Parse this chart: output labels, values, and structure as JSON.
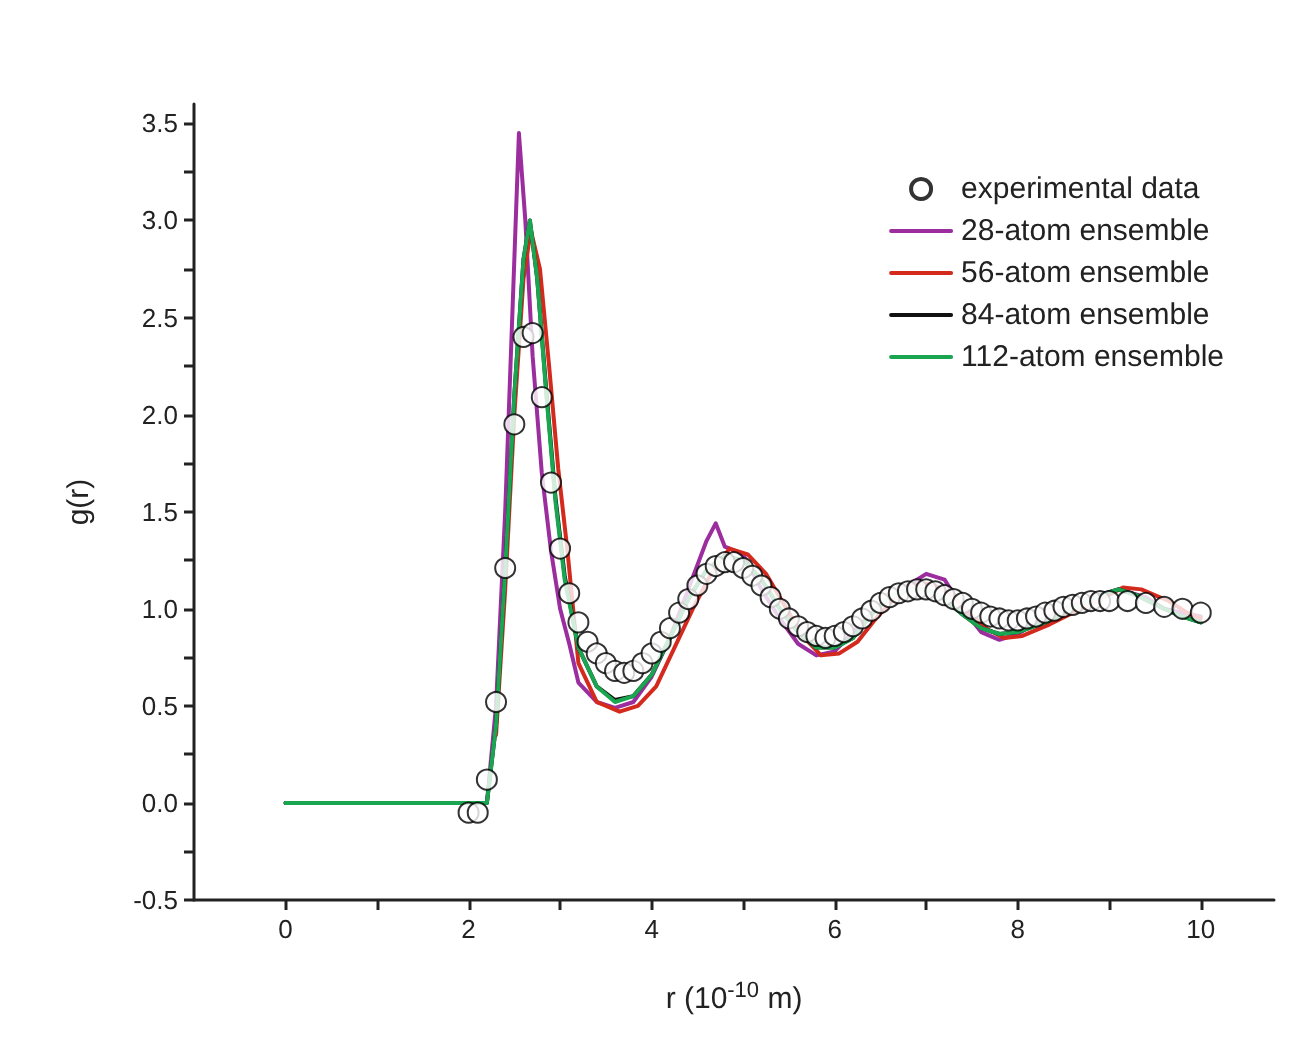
{
  "chart_data": {
    "type": "line",
    "xlabel": "r (10$^{-10}$ m)",
    "ylabel": "g(r)",
    "xlim": [
      -1,
      10.8
    ],
    "ylim": [
      -0.5,
      3.6
    ],
    "xticks": [
      0,
      {
        "value": 1,
        "label": null
      },
      2,
      {
        "value": 3,
        "label": null
      },
      4,
      {
        "value": 5,
        "label": null
      },
      6,
      {
        "value": 7,
        "label": null
      },
      8,
      {
        "value": 9,
        "label": null
      },
      10
    ],
    "yticks": [
      {
        "value": -0.5,
        "label": "-0.5"
      },
      {
        "value": -0.25,
        "label": null
      },
      {
        "value": 0,
        "label": "0.0"
      },
      {
        "value": 0.25,
        "label": null
      },
      {
        "value": 0.5,
        "label": "0.5"
      },
      {
        "value": 0.75,
        "label": null
      },
      {
        "value": 1,
        "label": "1.0"
      },
      {
        "value": 1.25,
        "label": null
      },
      {
        "value": 1.5,
        "label": "1.5"
      },
      {
        "value": 1.75,
        "label": null
      },
      {
        "value": 2,
        "label": "2.0"
      },
      {
        "value": 2.25,
        "label": null
      },
      {
        "value": 2.5,
        "label": "2.5"
      },
      {
        "value": 2.75,
        "label": null
      },
      {
        "value": 3,
        "label": "3.0"
      },
      {
        "value": 3.25,
        "label": null
      },
      {
        "value": 3.5,
        "label": "3.5"
      }
    ],
    "grid": false,
    "legend": "top right",
    "line_style": "solid",
    "series": [
      {
        "name": "experimental data",
        "type": "scatter",
        "marker": "circle",
        "color": "#000000",
        "x": [
          2.0,
          2.1,
          2.2,
          2.3,
          2.4,
          2.5,
          2.6,
          2.7,
          2.8,
          2.9,
          3.0,
          3.1,
          3.2,
          3.3,
          3.4,
          3.5,
          3.6,
          3.7,
          3.8,
          3.9,
          4.0,
          4.1,
          4.2,
          4.3,
          4.4,
          4.5,
          4.6,
          4.7,
          4.8,
          4.9,
          5.0,
          5.1,
          5.2,
          5.3,
          5.4,
          5.5,
          5.6,
          5.7,
          5.8,
          5.9,
          6.0,
          6.1,
          6.2,
          6.3,
          6.4,
          6.5,
          6.6,
          6.7,
          6.8,
          6.9,
          7.0,
          7.1,
          7.2,
          7.3,
          7.4,
          7.5,
          7.6,
          7.7,
          7.8,
          7.9,
          8.0,
          8.1,
          8.2,
          8.3,
          8.4,
          8.5,
          8.6,
          8.7,
          8.8,
          8.9,
          9.0,
          9.2,
          9.4,
          9.6,
          9.8,
          10.0
        ],
        "values": [
          -0.05,
          -0.05,
          0.12,
          0.52,
          1.21,
          1.95,
          2.4,
          2.42,
          2.09,
          1.65,
          1.31,
          1.08,
          0.93,
          0.83,
          0.77,
          0.72,
          0.68,
          0.67,
          0.68,
          0.72,
          0.77,
          0.83,
          0.9,
          0.98,
          1.05,
          1.12,
          1.18,
          1.22,
          1.24,
          1.24,
          1.21,
          1.17,
          1.12,
          1.06,
          1.0,
          0.95,
          0.91,
          0.88,
          0.86,
          0.85,
          0.86,
          0.88,
          0.91,
          0.95,
          0.99,
          1.03,
          1.06,
          1.08,
          1.09,
          1.1,
          1.1,
          1.09,
          1.07,
          1.05,
          1.03,
          1.0,
          0.98,
          0.96,
          0.95,
          0.94,
          0.94,
          0.95,
          0.96,
          0.98,
          0.99,
          1.01,
          1.02,
          1.03,
          1.04,
          1.04,
          1.04,
          1.04,
          1.03,
          1.01,
          1.0,
          0.98
        ]
      },
      {
        "name": "28-atom ensemble",
        "marker": "none",
        "color": "#9b2d9e",
        "x": [
          0,
          2.2,
          2.3,
          2.4,
          2.5,
          2.55,
          2.62,
          2.7,
          2.8,
          2.9,
          3.0,
          3.1,
          3.2,
          3.4,
          3.6,
          3.8,
          4.0,
          4.2,
          4.4,
          4.6,
          4.7,
          4.8,
          5.0,
          5.2,
          5.4,
          5.6,
          5.8,
          6.0,
          6.2,
          6.5,
          6.8,
          7.0,
          7.2,
          7.4,
          7.6,
          7.8,
          8.0,
          8.2,
          8.5,
          8.8,
          9.1,
          9.4,
          9.6,
          9.8,
          10.0
        ],
        "values": [
          0,
          0,
          0.5,
          1.5,
          2.8,
          3.45,
          3.0,
          2.3,
          1.7,
          1.3,
          1.0,
          0.82,
          0.62,
          0.52,
          0.49,
          0.52,
          0.65,
          0.85,
          1.1,
          1.35,
          1.44,
          1.32,
          1.28,
          1.1,
          0.95,
          0.82,
          0.76,
          0.78,
          0.88,
          1.02,
          1.12,
          1.18,
          1.15,
          1.0,
          0.88,
          0.84,
          0.87,
          0.93,
          1.0,
          1.06,
          1.1,
          1.06,
          1.0,
          0.98,
          0.96
        ]
      },
      {
        "name": "56-atom ensemble",
        "marker": "none",
        "color": "#d42a1e",
        "x": [
          2.3,
          2.4,
          2.5,
          2.6,
          2.68,
          2.78,
          2.88,
          2.98,
          3.08,
          3.2,
          3.4,
          3.65,
          3.85,
          4.05,
          4.25,
          4.45,
          4.65,
          4.85,
          5.05,
          5.25,
          5.45,
          5.65,
          5.85,
          6.05,
          6.25,
          6.45,
          6.65,
          6.85,
          7.05,
          7.25,
          7.45,
          7.65,
          7.85,
          8.05,
          8.35,
          8.65,
          8.95,
          9.15,
          9.35,
          9.65,
          9.85,
          10.0
        ],
        "values": [
          0.35,
          1.1,
          2.0,
          2.7,
          2.95,
          2.75,
          2.25,
          1.72,
          1.3,
          0.72,
          0.52,
          0.47,
          0.5,
          0.6,
          0.8,
          1.0,
          1.18,
          1.31,
          1.28,
          1.18,
          1.02,
          0.86,
          0.76,
          0.77,
          0.83,
          0.95,
          1.05,
          1.12,
          1.13,
          1.08,
          0.99,
          0.9,
          0.85,
          0.86,
          0.92,
          0.99,
          1.06,
          1.11,
          1.1,
          1.04,
          0.98,
          0.95
        ]
      },
      {
        "name": "84-atom ensemble",
        "marker": "none",
        "color": "#111111",
        "x": [
          0,
          2.2,
          2.3,
          2.4,
          2.5,
          2.6,
          2.67,
          2.75,
          2.85,
          2.95,
          3.05,
          3.2,
          3.4,
          3.6,
          3.8,
          4.0,
          4.2,
          4.4,
          4.6,
          4.8,
          5.0,
          5.2,
          5.4,
          5.6,
          5.8,
          6.0,
          6.2,
          6.4,
          6.6,
          6.8,
          7.0,
          7.2,
          7.4,
          7.6,
          7.8,
          8.0,
          8.3,
          8.6,
          8.9,
          9.1,
          9.3,
          9.6,
          9.8,
          10.0
        ],
        "values": [
          0,
          0,
          0.4,
          1.2,
          2.1,
          2.8,
          3.0,
          2.7,
          2.12,
          1.57,
          1.17,
          0.8,
          0.6,
          0.53,
          0.55,
          0.66,
          0.85,
          1.05,
          1.2,
          1.27,
          1.25,
          1.15,
          1.0,
          0.88,
          0.8,
          0.8,
          0.85,
          0.97,
          1.06,
          1.1,
          1.1,
          1.05,
          0.97,
          0.9,
          0.87,
          0.88,
          0.93,
          1.0,
          1.07,
          1.1,
          1.07,
          1.0,
          0.96,
          0.93
        ]
      },
      {
        "name": "112-atom ensemble",
        "marker": "none",
        "color": "#1aa551",
        "x": [
          0,
          2.2,
          2.3,
          2.4,
          2.5,
          2.6,
          2.67,
          2.75,
          2.85,
          2.95,
          3.05,
          3.2,
          3.4,
          3.6,
          3.8,
          4.0,
          4.2,
          4.4,
          4.6,
          4.8,
          5.0,
          5.2,
          5.4,
          5.6,
          5.8,
          6.0,
          6.2,
          6.4,
          6.6,
          6.8,
          7.0,
          7.2,
          7.4,
          7.6,
          7.8,
          8.0,
          8.3,
          8.6,
          8.9,
          9.1,
          9.3,
          9.6,
          9.8,
          10.0
        ],
        "values": [
          0,
          0,
          0.4,
          1.2,
          2.1,
          2.8,
          3.0,
          2.7,
          2.1,
          1.55,
          1.15,
          0.8,
          0.6,
          0.52,
          0.55,
          0.66,
          0.85,
          1.05,
          1.2,
          1.27,
          1.25,
          1.15,
          1.0,
          0.88,
          0.8,
          0.8,
          0.85,
          0.97,
          1.06,
          1.1,
          1.1,
          1.05,
          0.97,
          0.9,
          0.87,
          0.88,
          0.93,
          1.0,
          1.07,
          1.1,
          1.07,
          1.0,
          0.96,
          0.93
        ]
      }
    ]
  }
}
